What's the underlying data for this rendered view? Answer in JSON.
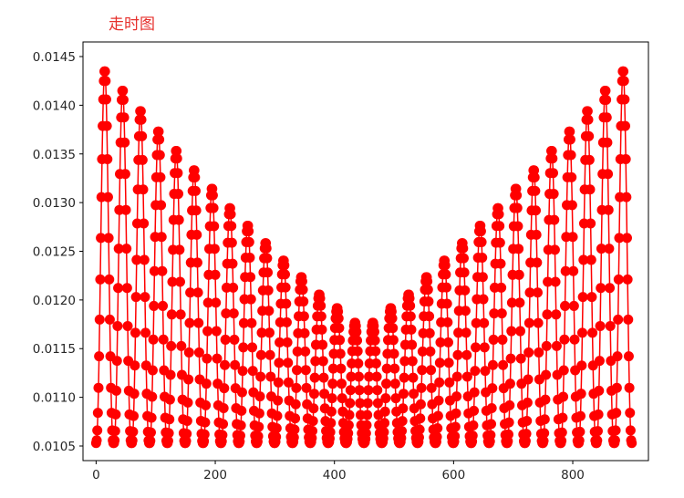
{
  "chart_data": {
    "type": "line",
    "title": "走时图",
    "xlabel": "",
    "ylabel": "",
    "xlim": [
      -22,
      927
    ],
    "ylim": [
      0.01035,
      0.01465
    ],
    "x_ticks": [
      0,
      200,
      400,
      600,
      800
    ],
    "y_ticks": [
      0.0105,
      0.011,
      0.0115,
      0.012,
      0.0125,
      0.013,
      0.0135,
      0.014,
      0.0145
    ],
    "y_tick_labels": [
      "0.0105",
      "0.0110",
      "0.0115",
      "0.0120",
      "0.0125",
      "0.0130",
      "0.0135",
      "0.0140",
      "0.0145"
    ],
    "grid": false,
    "legend": "none",
    "series": [
      {
        "color": "#ff0000",
        "marker": "circle",
        "description_of_pattern": "30 arches of 30 points each (x = 0..899), arch k spans x in [30k, 30k+29]",
        "arch_starts": [
          0,
          30,
          60,
          90,
          120,
          150,
          180,
          210,
          240,
          270,
          300,
          330,
          360,
          390,
          420,
          450,
          480,
          510,
          540,
          570,
          600,
          630,
          660,
          690,
          720,
          750,
          780,
          810,
          840,
          870
        ],
        "arch_peaks": [
          0.01436,
          0.01416,
          0.01395,
          0.01374,
          0.01354,
          0.01334,
          0.01315,
          0.01295,
          0.01277,
          0.01259,
          0.01241,
          0.01224,
          0.01206,
          0.01192,
          0.01177,
          0.01177,
          0.01192,
          0.01206,
          0.01224,
          0.01241,
          0.01259,
          0.01277,
          0.01295,
          0.01315,
          0.01334,
          0.01354,
          0.01374,
          0.01395,
          0.01416,
          0.01436
        ],
        "arch_floor": 0.01053
      }
    ]
  }
}
